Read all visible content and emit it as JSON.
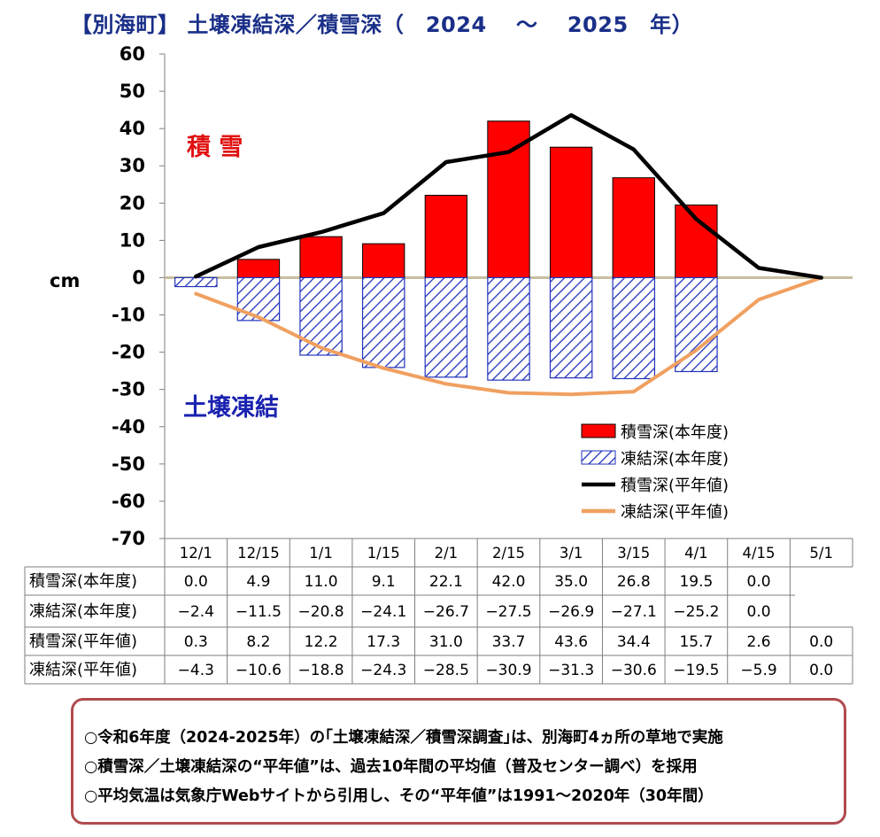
{
  "title": "【別海町】 土壌凍結深／積雪深（　2024　 ～　 2025　年）",
  "colors": {
    "title": "#1a2f88",
    "snow_bar": "#ff0000",
    "frost_bar": "#2233bb",
    "snow_normal": "#000000",
    "frost_normal": "#f0a060",
    "baseline": "#c8bea0",
    "snow_label": "#e01010",
    "frost_label": "#1a22b0"
  },
  "chart_data": {
    "type": "bar",
    "title": "【別海町】 土壌凍結深／積雪深（　2024　 ～　 2025　年）",
    "ylabel": "cm",
    "ylim": [
      -70,
      60
    ],
    "yticks": [
      "60",
      "50",
      "40",
      "30",
      "20",
      "10",
      "0",
      "-10",
      "-20",
      "-30",
      "-40",
      "-50",
      "-60",
      "-70"
    ],
    "categories": [
      "12/1",
      "12/15",
      "1/1",
      "1/15",
      "2/1",
      "2/15",
      "3/1",
      "3/15",
      "4/1",
      "4/15",
      "5/1"
    ],
    "annotations": {
      "snow": "積 雪",
      "frost": "土壌凍結"
    },
    "grid": false,
    "legend_position": "lower-right",
    "series": [
      {
        "name": "積雪深(本年度)",
        "kind": "bar",
        "pattern": "solid",
        "values": [
          0.0,
          4.9,
          11.0,
          9.1,
          22.1,
          42.0,
          35.0,
          26.8,
          19.5,
          0.0,
          null
        ],
        "labels": [
          "0.0",
          "4.9",
          "11.0",
          "9.1",
          "22.1",
          "42.0",
          "35.0",
          "26.8",
          "19.5",
          "0.0",
          ""
        ]
      },
      {
        "name": "凍結深(本年度)",
        "kind": "bar",
        "pattern": "hatched",
        "values": [
          -2.4,
          -11.5,
          -20.8,
          -24.1,
          -26.7,
          -27.5,
          -26.9,
          -27.1,
          -25.2,
          0.0,
          null
        ],
        "labels": [
          "−2.4",
          "−11.5",
          "−20.8",
          "−24.1",
          "−26.7",
          "−27.5",
          "−26.9",
          "−27.1",
          "−25.2",
          "0.0",
          ""
        ]
      },
      {
        "name": "積雪深(平年値)",
        "kind": "line",
        "values": [
          0.3,
          8.2,
          12.2,
          17.3,
          31.0,
          33.7,
          43.6,
          34.4,
          15.7,
          2.6,
          0.0
        ],
        "labels": [
          "0.3",
          "8.2",
          "12.2",
          "17.3",
          "31.0",
          "33.7",
          "43.6",
          "34.4",
          "15.7",
          "2.6",
          "0.0"
        ]
      },
      {
        "name": "凍結深(平年値)",
        "kind": "line",
        "values": [
          -4.3,
          -10.6,
          -18.8,
          -24.3,
          -28.5,
          -30.9,
          -31.3,
          -30.6,
          -19.5,
          -5.9,
          0.0
        ],
        "labels": [
          "−4.3",
          "−10.6",
          "−18.8",
          "−24.3",
          "−28.5",
          "−30.9",
          "−31.3",
          "−30.6",
          "−19.5",
          "−5.9",
          "0.0"
        ]
      }
    ]
  },
  "notes": [
    "○令和6年度（2024-2025年）の｢土壌凍結深／積雪深調査｣は、別海町4ヵ所の草地で実施",
    "○積雪深／土壌凍結深の“平年値”は、過去10年間の平均値（普及センター調べ）を採用",
    "○平均気温は気象庁Webサイトから引用し、その“平年値”は1991～2020年（30年間）"
  ]
}
